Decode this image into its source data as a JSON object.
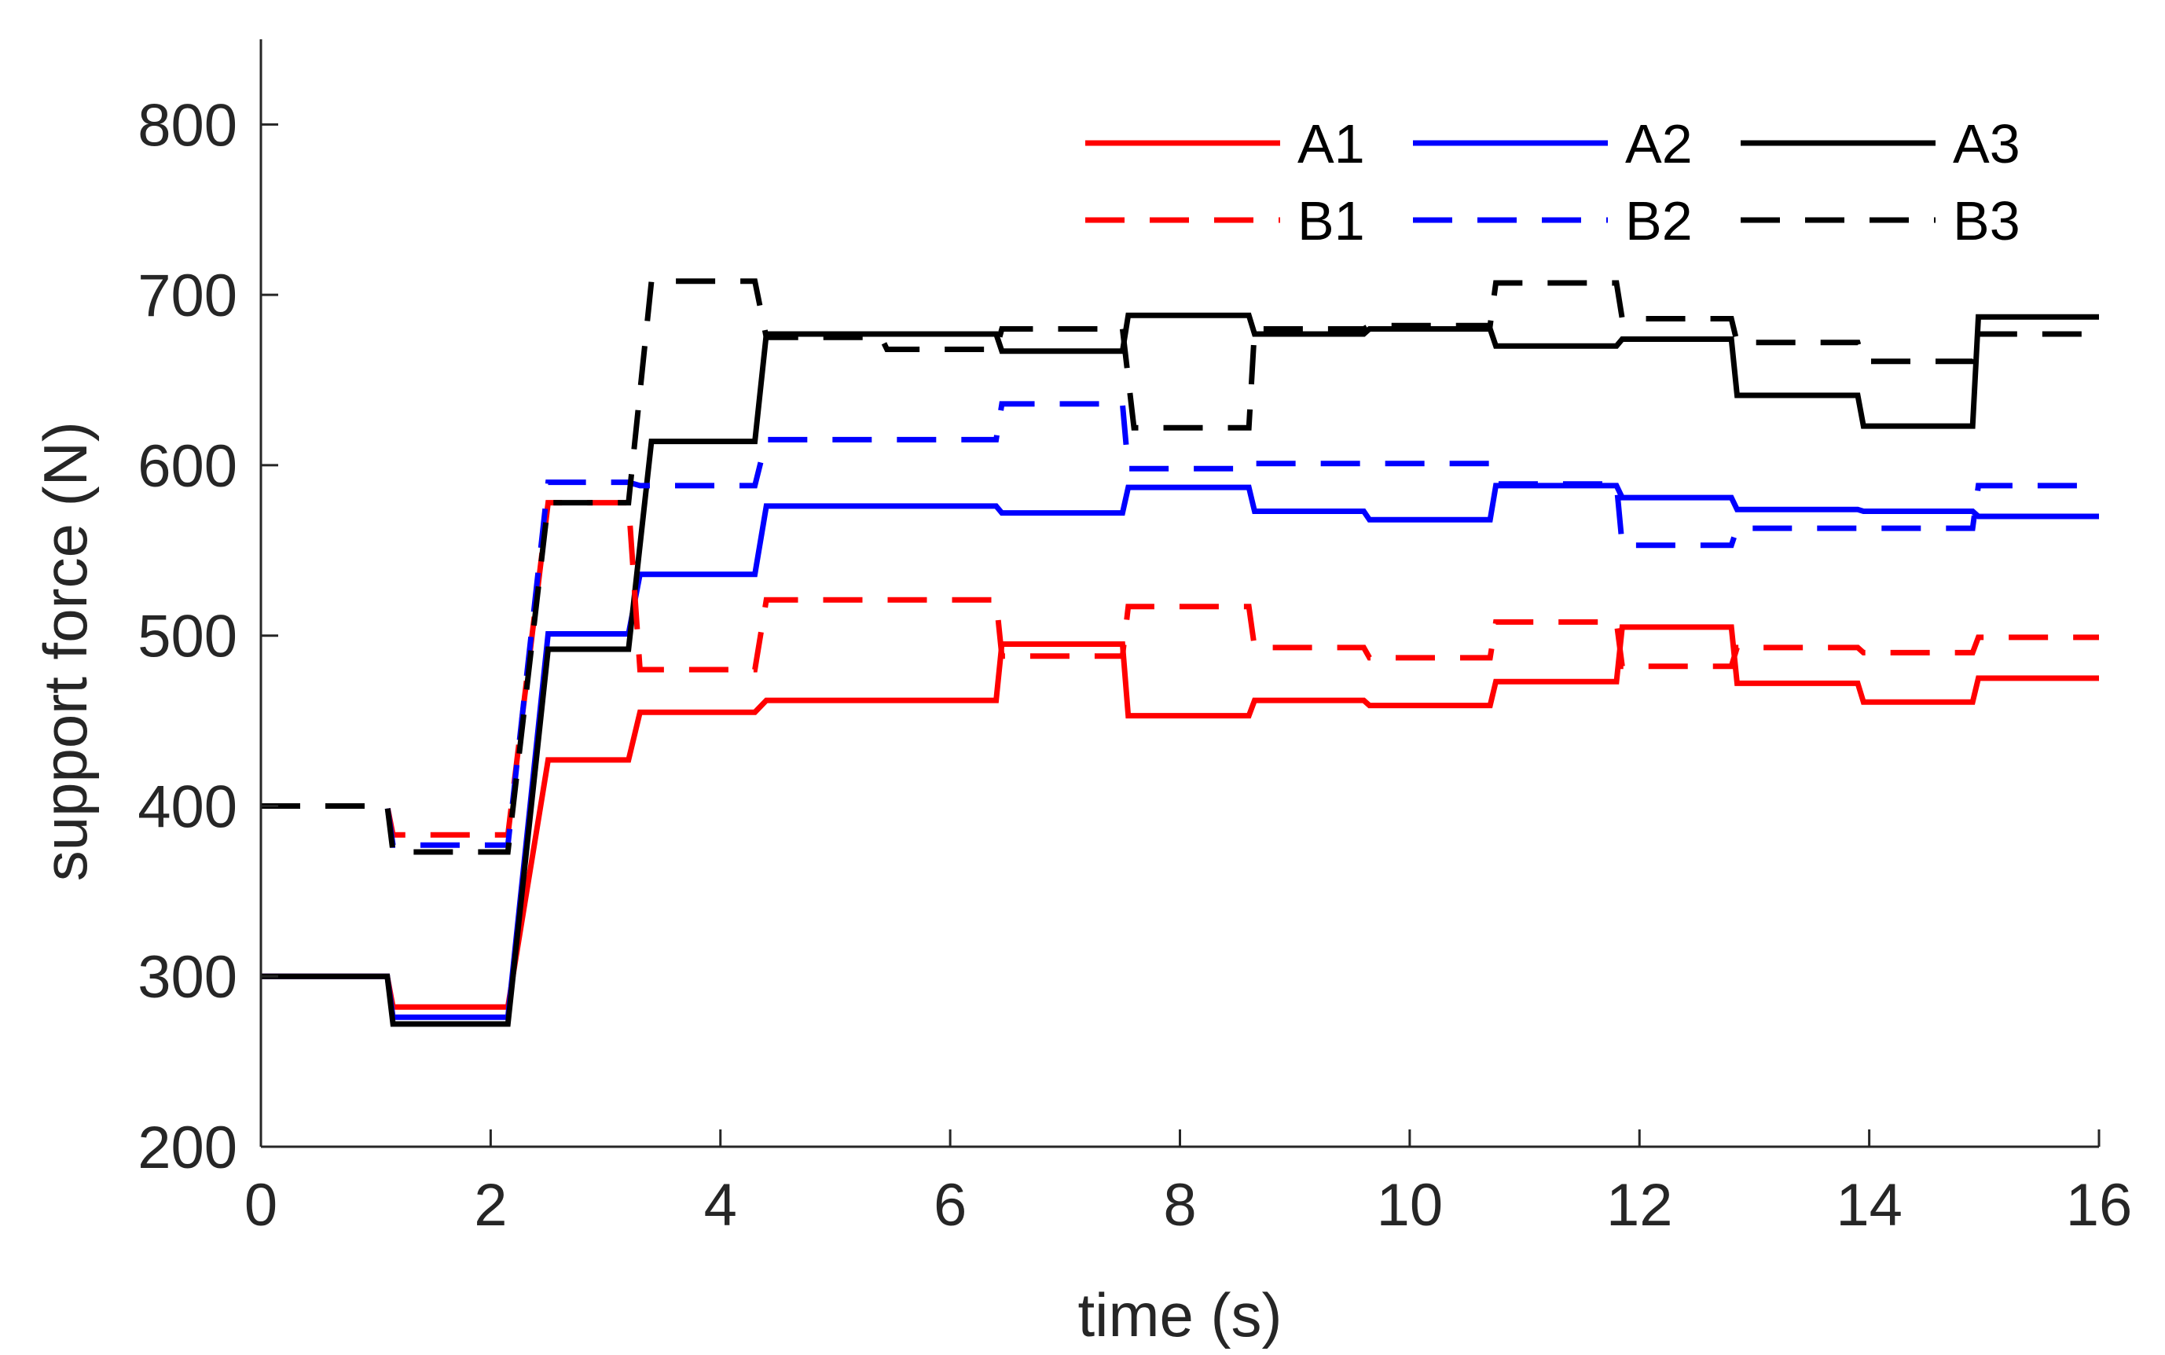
{
  "chart_data": {
    "type": "line",
    "title": "",
    "xlabel": "time (s)",
    "ylabel": "support force (N)",
    "xlim": [
      0,
      16
    ],
    "ylim": [
      200,
      850
    ],
    "xticks": [
      0,
      2,
      4,
      6,
      8,
      10,
      12,
      14,
      16
    ],
    "yticks": [
      200,
      300,
      400,
      500,
      600,
      700,
      800
    ],
    "grid": false,
    "legend_position": "top-right",
    "series_format": "steps: [t_start, t_end, value]; consecutive steps joined",
    "series": [
      {
        "name": "A1",
        "color": "#ff0000",
        "dash": "solid",
        "steps": [
          [
            0,
            1.1,
            300
          ],
          [
            1.15,
            2.15,
            282
          ],
          [
            2.5,
            3.2,
            427
          ],
          [
            3.3,
            4.3,
            455
          ],
          [
            4.4,
            6.4,
            462
          ],
          [
            6.45,
            7.5,
            495
          ],
          [
            7.55,
            8.6,
            453
          ],
          [
            8.65,
            9.6,
            462
          ],
          [
            9.65,
            10.7,
            459
          ],
          [
            10.75,
            11.8,
            473
          ],
          [
            11.85,
            12.8,
            505
          ],
          [
            12.85,
            13.9,
            472
          ],
          [
            13.95,
            14.9,
            461
          ],
          [
            14.95,
            16,
            475
          ]
        ]
      },
      {
        "name": "A2",
        "color": "#0000ff",
        "dash": "solid",
        "steps": [
          [
            0,
            1.1,
            300
          ],
          [
            1.15,
            2.15,
            276
          ],
          [
            2.5,
            3.2,
            501
          ],
          [
            3.3,
            4.3,
            536
          ],
          [
            4.4,
            6.4,
            576
          ],
          [
            6.45,
            7.5,
            572
          ],
          [
            7.55,
            8.6,
            587
          ],
          [
            8.65,
            9.6,
            573
          ],
          [
            9.65,
            10.7,
            568
          ],
          [
            10.75,
            11.8,
            588
          ],
          [
            11.85,
            12.8,
            581
          ],
          [
            12.85,
            13.9,
            574
          ],
          [
            13.95,
            14.9,
            573
          ],
          [
            14.95,
            16,
            570
          ]
        ]
      },
      {
        "name": "A3",
        "color": "#000000",
        "dash": "solid",
        "steps": [
          [
            0,
            1.1,
            300
          ],
          [
            1.15,
            2.15,
            272
          ],
          [
            2.5,
            3.2,
            492
          ],
          [
            3.4,
            4.3,
            614
          ],
          [
            4.4,
            6.4,
            677
          ],
          [
            6.45,
            7.5,
            667
          ],
          [
            7.55,
            8.6,
            688
          ],
          [
            8.65,
            9.6,
            677
          ],
          [
            9.65,
            10.7,
            680
          ],
          [
            10.75,
            11.8,
            670
          ],
          [
            11.85,
            12.8,
            674
          ],
          [
            12.85,
            13.9,
            641
          ],
          [
            13.95,
            14.9,
            623
          ],
          [
            14.95,
            16,
            687
          ]
        ]
      },
      {
        "name": "B1",
        "color": "#ff0000",
        "dash": "dashed",
        "steps": [
          [
            0,
            1.1,
            400
          ],
          [
            1.15,
            2.15,
            383
          ],
          [
            2.5,
            3.2,
            578
          ],
          [
            3.3,
            4.3,
            480
          ],
          [
            4.4,
            6.4,
            521
          ],
          [
            6.45,
            7.5,
            488
          ],
          [
            7.55,
            8.6,
            517
          ],
          [
            8.65,
            9.6,
            493
          ],
          [
            9.65,
            10.7,
            487
          ],
          [
            10.75,
            11.8,
            508
          ],
          [
            11.85,
            12.8,
            482
          ],
          [
            12.85,
            13.9,
            493
          ],
          [
            13.95,
            14.9,
            490
          ],
          [
            14.95,
            16,
            499
          ]
        ]
      },
      {
        "name": "B2",
        "color": "#0000ff",
        "dash": "dashed",
        "steps": [
          [
            0,
            1.1,
            400
          ],
          [
            1.15,
            2.15,
            377
          ],
          [
            2.5,
            3.2,
            590
          ],
          [
            3.3,
            4.3,
            588
          ],
          [
            4.4,
            6.4,
            615
          ],
          [
            6.45,
            7.5,
            636
          ],
          [
            7.55,
            8.6,
            598
          ],
          [
            8.65,
            10.7,
            601
          ],
          [
            10.75,
            11.8,
            589
          ],
          [
            11.85,
            12.8,
            553
          ],
          [
            12.85,
            13.9,
            563
          ],
          [
            13.95,
            14.9,
            563
          ],
          [
            14.95,
            16,
            588
          ]
        ]
      },
      {
        "name": "B3",
        "color": "#000000",
        "dash": "dashed",
        "steps": [
          [
            0,
            1.1,
            400
          ],
          [
            1.15,
            2.15,
            373
          ],
          [
            2.5,
            3.2,
            578
          ],
          [
            3.4,
            4.3,
            708
          ],
          [
            4.4,
            5.4,
            675
          ],
          [
            5.45,
            6.4,
            668
          ],
          [
            6.45,
            7.5,
            680
          ],
          [
            7.6,
            8.6,
            622
          ],
          [
            8.65,
            9.6,
            680
          ],
          [
            9.65,
            10.7,
            682
          ],
          [
            10.75,
            11.8,
            707
          ],
          [
            11.85,
            12.8,
            686
          ],
          [
            12.85,
            13.9,
            672
          ],
          [
            13.95,
            14.9,
            661
          ],
          [
            14.95,
            16,
            677
          ]
        ]
      }
    ]
  }
}
